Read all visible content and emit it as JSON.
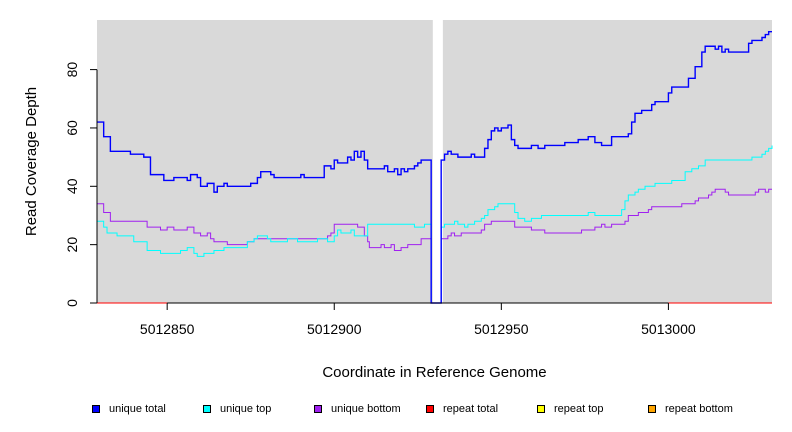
{
  "chart_data": {
    "type": "line",
    "title": "",
    "xlabel": "Coordinate in Reference Genome",
    "ylabel": "Read Coverage Depth",
    "xlim": [
      5012829,
      5013031
    ],
    "ylim": [
      0,
      97
    ],
    "x_ticks": [
      5012850,
      5012900,
      5012950,
      5013000
    ],
    "x_tick_labels": [
      "5012850",
      "5012900",
      "5012950",
      "5013000"
    ],
    "y_ticks": [
      0,
      20,
      40,
      60,
      80
    ],
    "y_tick_labels": [
      "0",
      "20",
      "40",
      "60",
      "80"
    ],
    "gap": [
      5012929.5,
      5012932.5
    ],
    "grid": false,
    "legend_position": "bottom",
    "series": [
      {
        "name": "unique total",
        "color": "#0000ff",
        "points": [
          [
            5012829,
            62
          ],
          [
            5012831,
            57
          ],
          [
            5012833,
            52
          ],
          [
            5012839,
            51
          ],
          [
            5012843,
            50
          ],
          [
            5012845,
            44
          ],
          [
            5012849,
            42
          ],
          [
            5012852,
            43
          ],
          [
            5012856,
            42
          ],
          [
            5012857,
            44
          ],
          [
            5012859,
            43
          ],
          [
            5012860,
            40
          ],
          [
            5012862,
            41
          ],
          [
            5012864,
            38
          ],
          [
            5012865,
            40
          ],
          [
            5012867,
            41
          ],
          [
            5012868,
            40
          ],
          [
            5012875,
            41
          ],
          [
            5012877,
            43
          ],
          [
            5012878,
            45
          ],
          [
            5012881,
            44
          ],
          [
            5012882,
            43
          ],
          [
            5012890,
            44
          ],
          [
            5012891,
            43
          ],
          [
            5012897,
            47
          ],
          [
            5012899,
            46
          ],
          [
            5012900,
            49
          ],
          [
            5012901,
            48
          ],
          [
            5012904,
            50
          ],
          [
            5012905,
            49
          ],
          [
            5012906,
            52
          ],
          [
            5012907,
            50
          ],
          [
            5012908,
            52
          ],
          [
            5012909,
            49
          ],
          [
            5012910,
            46
          ],
          [
            5012915,
            47
          ],
          [
            5012916,
            45
          ],
          [
            5012918,
            46
          ],
          [
            5012919,
            44
          ],
          [
            5012920,
            46
          ],
          [
            5012921,
            45
          ],
          [
            5012922,
            46
          ],
          [
            5012924,
            47
          ],
          [
            5012925,
            48
          ],
          [
            5012926,
            49
          ],
          [
            5012928,
            49
          ],
          [
            5012929,
            0
          ],
          [
            5012932,
            49
          ],
          [
            5012933,
            51
          ],
          [
            5012934,
            52
          ],
          [
            5012935,
            51
          ],
          [
            5012937,
            50
          ],
          [
            5012941,
            51
          ],
          [
            5012942,
            50
          ],
          [
            5012945,
            53
          ],
          [
            5012946,
            56
          ],
          [
            5012947,
            59
          ],
          [
            5012948,
            60
          ],
          [
            5012949,
            59
          ],
          [
            5012950,
            60
          ],
          [
            5012952,
            61
          ],
          [
            5012953,
            56
          ],
          [
            5012954,
            54
          ],
          [
            5012955,
            53
          ],
          [
            5012959,
            54
          ],
          [
            5012961,
            53
          ],
          [
            5012963,
            54
          ],
          [
            5012969,
            55
          ],
          [
            5012973,
            56
          ],
          [
            5012976,
            57
          ],
          [
            5012978,
            55
          ],
          [
            5012980,
            54
          ],
          [
            5012983,
            57
          ],
          [
            5012988,
            58
          ],
          [
            5012989,
            62
          ],
          [
            5012990,
            65
          ],
          [
            5012992,
            66
          ],
          [
            5012995,
            68
          ],
          [
            5012996,
            69
          ],
          [
            5013000,
            72
          ],
          [
            5013001,
            74
          ],
          [
            5013006,
            77
          ],
          [
            5013008,
            81
          ],
          [
            5013010,
            86
          ],
          [
            5013011,
            88
          ],
          [
            5013014,
            87
          ],
          [
            5013015,
            88
          ],
          [
            5013016,
            86
          ],
          [
            5013017,
            87
          ],
          [
            5013018,
            86
          ],
          [
            5013024,
            89
          ],
          [
            5013025,
            90
          ],
          [
            5013028,
            91
          ],
          [
            5013029,
            92
          ],
          [
            5013030,
            93
          ],
          [
            5013031,
            93
          ]
        ]
      },
      {
        "name": "unique top",
        "color": "#00ffff",
        "points": [
          [
            5012829,
            28
          ],
          [
            5012831,
            26
          ],
          [
            5012832,
            24
          ],
          [
            5012835,
            23
          ],
          [
            5012840,
            21
          ],
          [
            5012844,
            18
          ],
          [
            5012848,
            17
          ],
          [
            5012854,
            18
          ],
          [
            5012856,
            19
          ],
          [
            5012858,
            17
          ],
          [
            5012859,
            16
          ],
          [
            5012861,
            17
          ],
          [
            5012864,
            18
          ],
          [
            5012867,
            19
          ],
          [
            5012874,
            21
          ],
          [
            5012876,
            22
          ],
          [
            5012877,
            23
          ],
          [
            5012880,
            22
          ],
          [
            5012881,
            21
          ],
          [
            5012886,
            22
          ],
          [
            5012889,
            21
          ],
          [
            5012895,
            22
          ],
          [
            5012898,
            21
          ],
          [
            5012900,
            23
          ],
          [
            5012901,
            25
          ],
          [
            5012902,
            24
          ],
          [
            5012905,
            25
          ],
          [
            5012906,
            23
          ],
          [
            5012910,
            27
          ],
          [
            5012924,
            26
          ],
          [
            5012927,
            27
          ],
          [
            5012929,
            0
          ],
          [
            5012932,
            26
          ],
          [
            5012933,
            27
          ],
          [
            5012936,
            28
          ],
          [
            5012937,
            27
          ],
          [
            5012939,
            26
          ],
          [
            5012940,
            27
          ],
          [
            5012942,
            28
          ],
          [
            5012944,
            29
          ],
          [
            5012945,
            30
          ],
          [
            5012946,
            32
          ],
          [
            5012948,
            33
          ],
          [
            5012949,
            34
          ],
          [
            5012954,
            31
          ],
          [
            5012955,
            29
          ],
          [
            5012957,
            28
          ],
          [
            5012959,
            29
          ],
          [
            5012962,
            30
          ],
          [
            5012976,
            31
          ],
          [
            5012978,
            30
          ],
          [
            5012986,
            32
          ],
          [
            5012987,
            35
          ],
          [
            5012988,
            37
          ],
          [
            5012990,
            38
          ],
          [
            5012991,
            39
          ],
          [
            5012993,
            40
          ],
          [
            5012996,
            41
          ],
          [
            5013001,
            42
          ],
          [
            5013005,
            45
          ],
          [
            5013007,
            46
          ],
          [
            5013009,
            47
          ],
          [
            5013011,
            49
          ],
          [
            5013025,
            50
          ],
          [
            5013028,
            51
          ],
          [
            5013029,
            52
          ],
          [
            5013030,
            53
          ],
          [
            5013031,
            54
          ]
        ]
      },
      {
        "name": "unique bottom",
        "color": "#a020f0",
        "points": [
          [
            5012829,
            34
          ],
          [
            5012831,
            31
          ],
          [
            5012833,
            28
          ],
          [
            5012844,
            26
          ],
          [
            5012848,
            25
          ],
          [
            5012850,
            26
          ],
          [
            5012852,
            25
          ],
          [
            5012856,
            26
          ],
          [
            5012858,
            24
          ],
          [
            5012860,
            23
          ],
          [
            5012862,
            24
          ],
          [
            5012863,
            22
          ],
          [
            5012864,
            21
          ],
          [
            5012868,
            20
          ],
          [
            5012874,
            21
          ],
          [
            5012876,
            22
          ],
          [
            5012898,
            23
          ],
          [
            5012899,
            24
          ],
          [
            5012900,
            27
          ],
          [
            5012907,
            26
          ],
          [
            5012909,
            23
          ],
          [
            5012910,
            21
          ],
          [
            5012910.5,
            19
          ],
          [
            5012914,
            20
          ],
          [
            5012915,
            19
          ],
          [
            5012917,
            20
          ],
          [
            5012918,
            18
          ],
          [
            5012920,
            19
          ],
          [
            5012922,
            20
          ],
          [
            5012926,
            22
          ],
          [
            5012929,
            0
          ],
          [
            5012932,
            22
          ],
          [
            5012934,
            23
          ],
          [
            5012935,
            24
          ],
          [
            5012936,
            23
          ],
          [
            5012938,
            24
          ],
          [
            5012944,
            25
          ],
          [
            5012945,
            27
          ],
          [
            5012947,
            28
          ],
          [
            5012954,
            26
          ],
          [
            5012959,
            25
          ],
          [
            5012963,
            24
          ],
          [
            5012974,
            25
          ],
          [
            5012978,
            26
          ],
          [
            5012980,
            27
          ],
          [
            5012981,
            26
          ],
          [
            5012983,
            27
          ],
          [
            5012987,
            28
          ],
          [
            5012988,
            30
          ],
          [
            5012991,
            31
          ],
          [
            5012994,
            32
          ],
          [
            5012995,
            33
          ],
          [
            5013004,
            34
          ],
          [
            5013008,
            35
          ],
          [
            5013009,
            36
          ],
          [
            5013012,
            37
          ],
          [
            5013013,
            38
          ],
          [
            5013014,
            39
          ],
          [
            5013017,
            38
          ],
          [
            5013018,
            37
          ],
          [
            5013026,
            38
          ],
          [
            5013027,
            39
          ],
          [
            5013029,
            38
          ],
          [
            5013030,
            39
          ],
          [
            5013031,
            39
          ]
        ]
      },
      {
        "name": "repeat total",
        "color": "#ff0000",
        "points": [
          [
            5012829,
            0
          ],
          [
            5013031,
            0
          ]
        ]
      },
      {
        "name": "repeat top",
        "color": "#ffff00",
        "points": [
          [
            5012829,
            0
          ],
          [
            5013031,
            0
          ]
        ]
      },
      {
        "name": "repeat bottom",
        "color": "#ffa500",
        "points": [
          [
            5012829,
            0
          ],
          [
            5013031,
            0
          ]
        ]
      }
    ]
  },
  "legend": {
    "items": [
      {
        "label": "unique total",
        "color": "#0000ff"
      },
      {
        "label": "unique top",
        "color": "#00ffff"
      },
      {
        "label": "unique bottom",
        "color": "#a020f0"
      },
      {
        "label": "repeat total",
        "color": "#ff0000"
      },
      {
        "label": "repeat top",
        "color": "#ffff00"
      },
      {
        "label": "repeat bottom",
        "color": "#ffa500"
      }
    ]
  }
}
